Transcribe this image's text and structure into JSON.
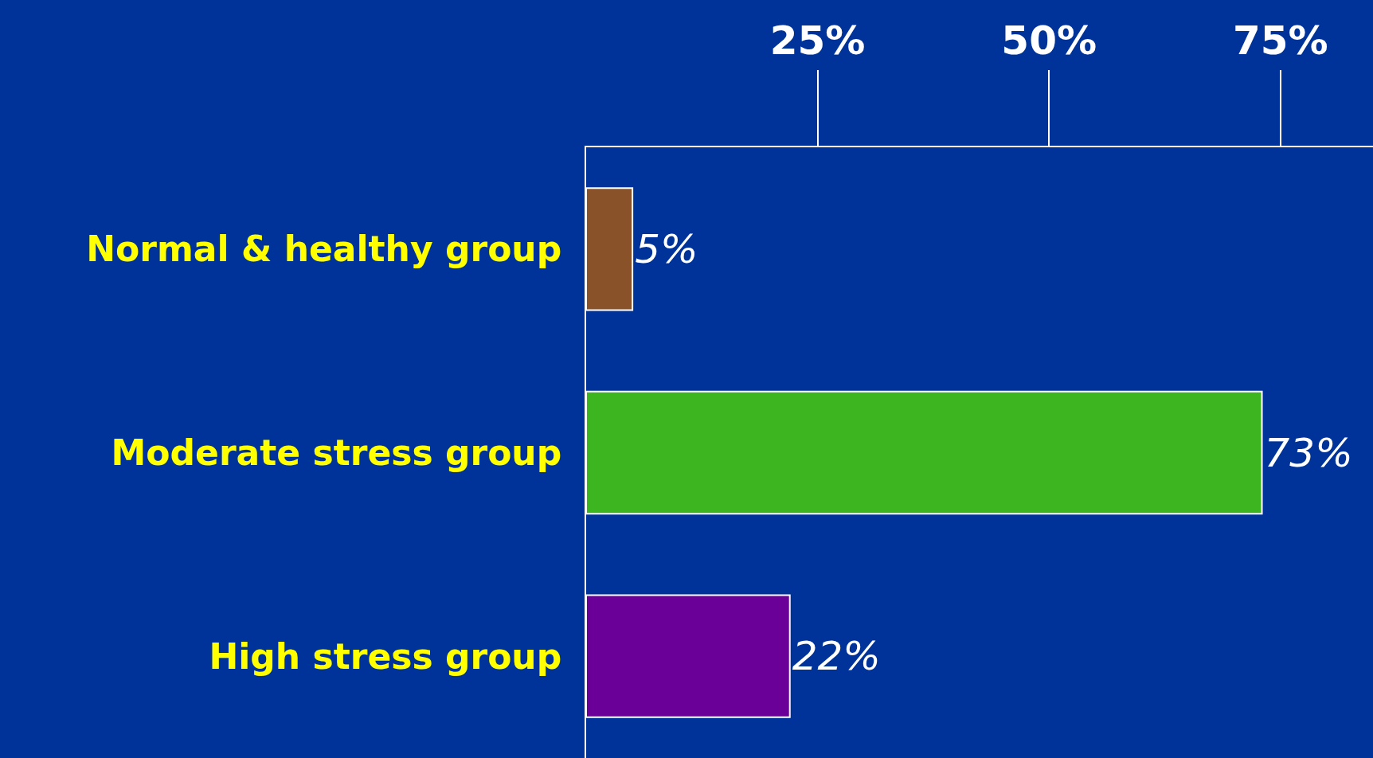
{
  "chart_data": {
    "type": "bar",
    "orientation": "horizontal",
    "categories": [
      "Normal & healthy group",
      "Moderate stress group",
      "High stress group"
    ],
    "values": [
      5,
      73,
      22
    ],
    "value_labels": [
      "5%",
      "73%",
      "22%"
    ],
    "colors": [
      "#8a5228",
      "#3cb521",
      "#6a0098"
    ],
    "xlim": [
      0,
      85
    ],
    "xticks": [
      {
        "value": 25,
        "label": "25%"
      },
      {
        "value": 50,
        "label": "50%"
      },
      {
        "value": 75,
        "label": "75%"
      }
    ],
    "grid": false,
    "legend": false
  }
}
